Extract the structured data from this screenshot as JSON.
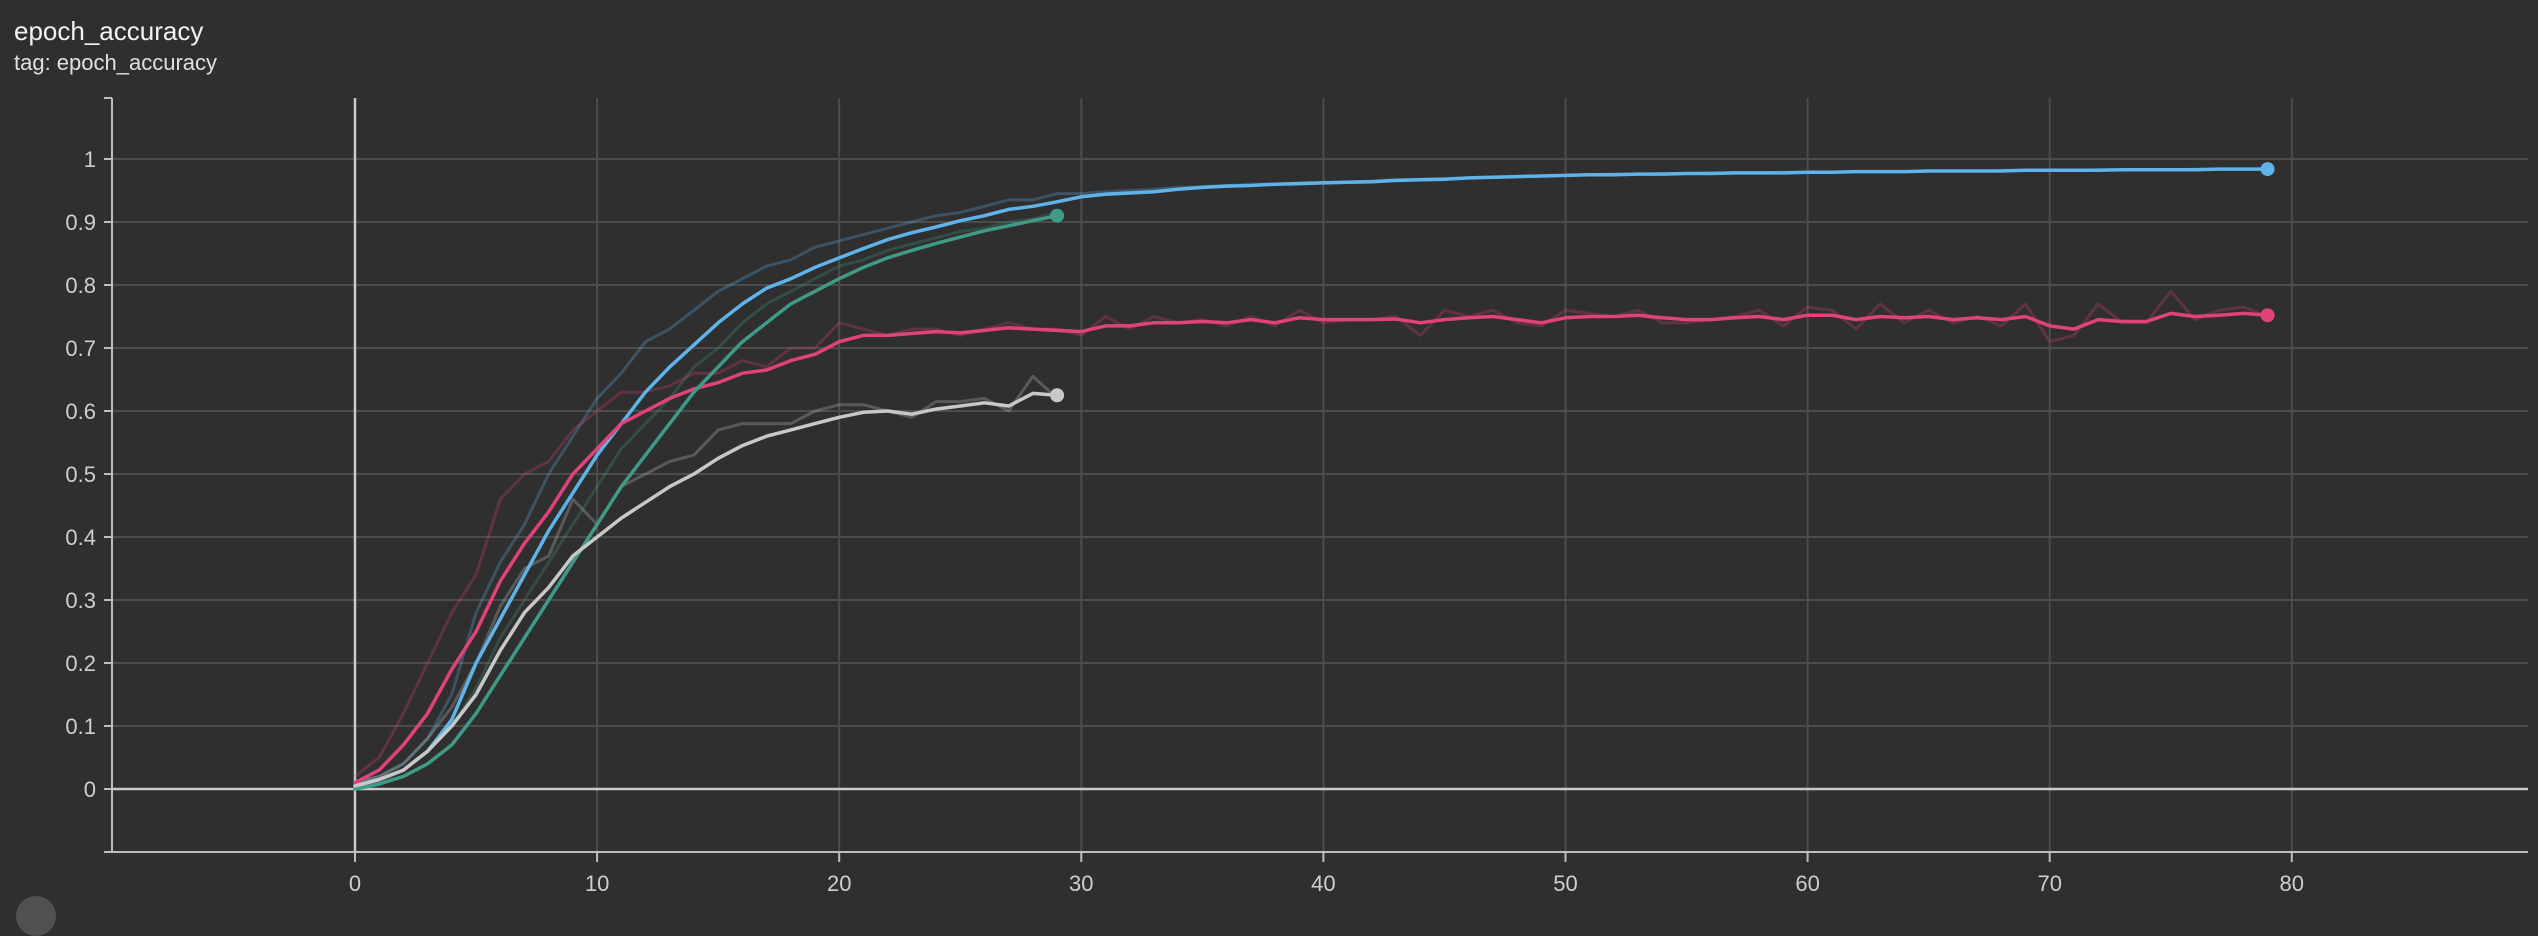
{
  "header": {
    "title": "epoch_accuracy",
    "subtitle": "tag: epoch_accuracy"
  },
  "chart_data": {
    "type": "line",
    "title": "epoch_accuracy",
    "xlabel": "",
    "ylabel": "",
    "xlim": [
      -10,
      90
    ],
    "ylim": [
      -0.1,
      1.1
    ],
    "xticks": [
      0,
      10,
      20,
      30,
      40,
      50,
      60,
      70,
      80
    ],
    "yticks": [
      0,
      0.1,
      0.2,
      0.3,
      0.4,
      0.5,
      0.6,
      0.7,
      0.8,
      0.9,
      1
    ],
    "xtick_labels": [
      "0",
      "10",
      "20",
      "30",
      "40",
      "50",
      "60",
      "70",
      "80"
    ],
    "ytick_labels": [
      "0",
      "0.1",
      "0.2",
      "0.3",
      "0.4",
      "0.5",
      "0.6",
      "0.7",
      "0.8",
      "0.9",
      "1"
    ],
    "grid": true,
    "legend": "none",
    "series": [
      {
        "color": "#5fb3e9",
        "smoothed": [
          0.005,
          0.015,
          0.03,
          0.06,
          0.11,
          0.2,
          0.27,
          0.34,
          0.41,
          0.47,
          0.53,
          0.58,
          0.63,
          0.67,
          0.705,
          0.74,
          0.77,
          0.795,
          0.81,
          0.828,
          0.843,
          0.858,
          0.872,
          0.883,
          0.892,
          0.902,
          0.91,
          0.92,
          0.925,
          0.932,
          0.94,
          0.944,
          0.946,
          0.948,
          0.952,
          0.955,
          0.957,
          0.958,
          0.96,
          0.961,
          0.962,
          0.963,
          0.964,
          0.966,
          0.967,
          0.968,
          0.97,
          0.971,
          0.972,
          0.973,
          0.974,
          0.975,
          0.975,
          0.976,
          0.976,
          0.977,
          0.977,
          0.978,
          0.978,
          0.978,
          0.979,
          0.979,
          0.98,
          0.98,
          0.98,
          0.981,
          0.981,
          0.981,
          0.981,
          0.982,
          0.982,
          0.982,
          0.982,
          0.983,
          0.983,
          0.983,
          0.983,
          0.984,
          0.984,
          0.984
        ],
        "raw": [
          0.01,
          0.02,
          0.04,
          0.08,
          0.15,
          0.28,
          0.36,
          0.42,
          0.5,
          0.56,
          0.62,
          0.66,
          0.71,
          0.73,
          0.76,
          0.79,
          0.81,
          0.83,
          0.84,
          0.86,
          0.87,
          0.88,
          0.89,
          0.9,
          0.91,
          0.915,
          0.925,
          0.935,
          0.935,
          0.945,
          0.945,
          0.948,
          0.95,
          0.952,
          0.955,
          0.956,
          0.958,
          0.96,
          0.96,
          0.962,
          0.963,
          0.964,
          0.965,
          0.967,
          0.968,
          0.969,
          0.97,
          0.971,
          0.972,
          0.973,
          0.974,
          0.975,
          0.976,
          0.976,
          0.977,
          0.977,
          0.978,
          0.978,
          0.978,
          0.979,
          0.979,
          0.979,
          0.98,
          0.98,
          0.98,
          0.981,
          0.981,
          0.981,
          0.982,
          0.982,
          0.982,
          0.982,
          0.983,
          0.983,
          0.983,
          0.983,
          0.984,
          0.984,
          0.984,
          0.985
        ]
      },
      {
        "color": "#e0427a",
        "smoothed": [
          0.01,
          0.03,
          0.07,
          0.12,
          0.19,
          0.25,
          0.33,
          0.39,
          0.44,
          0.5,
          0.54,
          0.58,
          0.6,
          0.62,
          0.635,
          0.645,
          0.66,
          0.665,
          0.68,
          0.69,
          0.71,
          0.72,
          0.72,
          0.723,
          0.726,
          0.724,
          0.728,
          0.732,
          0.73,
          0.728,
          0.726,
          0.735,
          0.735,
          0.74,
          0.74,
          0.742,
          0.74,
          0.745,
          0.74,
          0.748,
          0.745,
          0.745,
          0.745,
          0.746,
          0.74,
          0.745,
          0.748,
          0.75,
          0.745,
          0.74,
          0.748,
          0.75,
          0.75,
          0.752,
          0.748,
          0.745,
          0.745,
          0.748,
          0.75,
          0.745,
          0.752,
          0.752,
          0.745,
          0.75,
          0.748,
          0.75,
          0.745,
          0.748,
          0.745,
          0.75,
          0.735,
          0.73,
          0.745,
          0.742,
          0.742,
          0.755,
          0.75,
          0.752,
          0.755,
          0.752
        ],
        "raw": [
          0.02,
          0.05,
          0.12,
          0.2,
          0.28,
          0.34,
          0.46,
          0.5,
          0.52,
          0.57,
          0.6,
          0.63,
          0.63,
          0.64,
          0.66,
          0.66,
          0.68,
          0.67,
          0.7,
          0.7,
          0.74,
          0.73,
          0.72,
          0.73,
          0.73,
          0.72,
          0.73,
          0.74,
          0.73,
          0.73,
          0.72,
          0.75,
          0.73,
          0.75,
          0.74,
          0.745,
          0.735,
          0.75,
          0.735,
          0.76,
          0.74,
          0.745,
          0.745,
          0.75,
          0.72,
          0.76,
          0.75,
          0.76,
          0.74,
          0.735,
          0.76,
          0.755,
          0.75,
          0.76,
          0.74,
          0.74,
          0.745,
          0.75,
          0.76,
          0.735,
          0.765,
          0.76,
          0.73,
          0.77,
          0.74,
          0.76,
          0.74,
          0.75,
          0.735,
          0.77,
          0.71,
          0.72,
          0.77,
          0.74,
          0.74,
          0.79,
          0.745,
          0.76,
          0.765,
          0.75
        ]
      },
      {
        "color": "#3f9a87",
        "smoothed": [
          0.0,
          0.008,
          0.02,
          0.04,
          0.07,
          0.12,
          0.18,
          0.24,
          0.3,
          0.36,
          0.42,
          0.48,
          0.53,
          0.58,
          0.63,
          0.67,
          0.71,
          0.74,
          0.77,
          0.79,
          0.81,
          0.828,
          0.843,
          0.855,
          0.866,
          0.876,
          0.886,
          0.894,
          0.902,
          0.91
        ],
        "raw": [
          0.0,
          0.01,
          0.03,
          0.06,
          0.1,
          0.16,
          0.24,
          0.3,
          0.36,
          0.42,
          0.48,
          0.54,
          0.58,
          0.62,
          0.67,
          0.7,
          0.74,
          0.77,
          0.79,
          0.81,
          0.83,
          0.84,
          0.855,
          0.865,
          0.875,
          0.885,
          0.89,
          0.9,
          0.905,
          0.915
        ]
      },
      {
        "color": "#c8c8c8",
        "smoothed": [
          0.005,
          0.015,
          0.03,
          0.06,
          0.1,
          0.15,
          0.22,
          0.28,
          0.32,
          0.37,
          0.4,
          0.43,
          0.455,
          0.48,
          0.5,
          0.525,
          0.545,
          0.56,
          0.57,
          0.58,
          0.59,
          0.598,
          0.6,
          0.595,
          0.603,
          0.608,
          0.613,
          0.608,
          0.628,
          0.625
        ],
        "raw": [
          0.01,
          0.02,
          0.04,
          0.08,
          0.13,
          0.2,
          0.29,
          0.35,
          0.37,
          0.46,
          0.42,
          0.48,
          0.5,
          0.52,
          0.53,
          0.57,
          0.58,
          0.58,
          0.58,
          0.6,
          0.61,
          0.61,
          0.6,
          0.59,
          0.615,
          0.615,
          0.62,
          0.6,
          0.655,
          0.62
        ]
      }
    ]
  },
  "footer": {
    "icon": "circle-control-icon"
  }
}
